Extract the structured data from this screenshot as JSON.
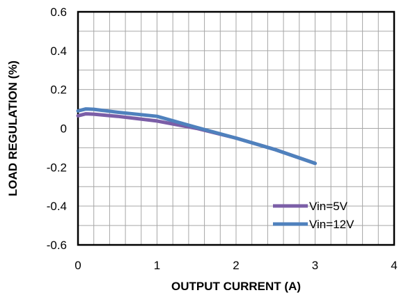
{
  "chart_data": {
    "type": "line",
    "xlabel": "OUTPUT  CURRENT  (A)",
    "ylabel": "LOAD REGULATION  (%)",
    "xlim": [
      0,
      4
    ],
    "ylim": [
      -0.6,
      0.6
    ],
    "x_ticks": [
      "0",
      "1",
      "2",
      "3",
      "4"
    ],
    "y_ticks": [
      "0.6",
      "0.4",
      "0.2",
      "0",
      "-0.2",
      "-0.4",
      "-0.6"
    ],
    "grid": true,
    "legend_position": "bottom-right",
    "series": [
      {
        "name": "Vin=5V",
        "color": "#7b5ea7",
        "x": [
          0,
          0.1,
          0.2,
          0.5,
          1.0,
          1.5,
          2.0,
          2.5,
          3.0
        ],
        "y": [
          0.065,
          0.075,
          0.073,
          0.062,
          0.038,
          0.0,
          -0.05,
          -0.11,
          -0.18
        ]
      },
      {
        "name": "Vin=12V",
        "color": "#4f81bd",
        "x": [
          0,
          0.1,
          0.2,
          0.5,
          1.0,
          1.5,
          2.0,
          2.5,
          3.0
        ],
        "y": [
          0.09,
          0.1,
          0.098,
          0.083,
          0.062,
          0.005,
          -0.05,
          -0.11,
          -0.18
        ]
      }
    ]
  }
}
